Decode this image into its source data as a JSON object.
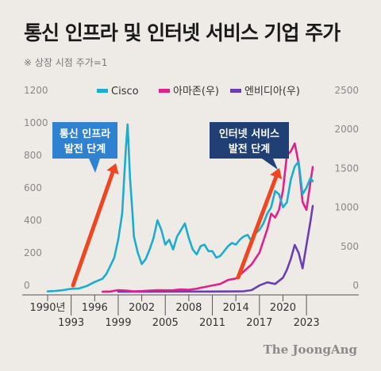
{
  "title": "통신 인프라 및 인터넷 서비스 기업 주가",
  "subtitle": "※ 상장 시점 주가=1",
  "credit": "The JoongAng",
  "chart_data": {
    "type": "line",
    "x_ticks_upper": [
      "1990년",
      "1996",
      "2002",
      "2008",
      "2014",
      "2020"
    ],
    "x_ticks_lower": [
      "1993",
      "1999",
      "2005",
      "2011",
      "2017",
      "2023"
    ],
    "xlim": [
      1990,
      2024
    ],
    "left_axis": {
      "ticks": [
        0,
        200,
        400,
        600,
        800,
        1000,
        1200
      ],
      "ylim": [
        0,
        1200
      ]
    },
    "right_axis": {
      "ticks": [
        0,
        500,
        1000,
        1500,
        2000,
        2500
      ],
      "ylim": [
        0,
        2500
      ]
    },
    "series": [
      {
        "name": "Cisco",
        "color": "#1aadd0",
        "axis": "left",
        "x": [
          1990,
          1991,
          1992,
          1993,
          1994,
          1995,
          1996,
          1997,
          1997.5,
          1998,
          1998.5,
          1999,
          1999.5,
          2000,
          2000.2,
          2000.5,
          2000.8,
          2001,
          2001.5,
          2002,
          2002.5,
          2003,
          2003.5,
          2004,
          2004.5,
          2005,
          2005.5,
          2006,
          2006.5,
          2007,
          2007.5,
          2008,
          2008.5,
          2009,
          2009.5,
          2010,
          2010.5,
          2011,
          2011.5,
          2012,
          2012.5,
          2013,
          2013.5,
          2014,
          2014.5,
          2015,
          2015.5,
          2016,
          2016.5,
          2017,
          2017.5,
          2018,
          2018.5,
          2019,
          2019.5,
          2020,
          2020.5,
          2021,
          2021.5,
          2022,
          2022.5,
          2023,
          2023.5,
          2023.8
        ],
        "values": [
          2,
          5,
          10,
          18,
          20,
          35,
          60,
          80,
          110,
          160,
          210,
          320,
          480,
          900,
          1030,
          700,
          500,
          340,
          240,
          170,
          200,
          260,
          330,
          440,
          380,
          290,
          320,
          260,
          340,
          380,
          420,
          330,
          260,
          230,
          280,
          290,
          250,
          250,
          210,
          220,
          250,
          280,
          300,
          290,
          320,
          340,
          350,
          310,
          360,
          380,
          420,
          480,
          520,
          620,
          600,
          520,
          550,
          690,
          770,
          800,
          600,
          640,
          700,
          680
        ]
      },
      {
        "name": "아마존(우)",
        "color": "#e0218a",
        "axis": "right",
        "x": [
          1997,
          1998,
          1999,
          2000,
          2001,
          2002,
          2003,
          2004,
          2005,
          2006,
          2007,
          2008,
          2009,
          2010,
          2011,
          2012,
          2013,
          2014,
          2015,
          2016,
          2017,
          2018,
          2018.5,
          2019,
          2019.5,
          2020,
          2020.5,
          2021,
          2021.5,
          2022,
          2022.5,
          2023,
          2023.5,
          2023.8
        ],
        "values": [
          1,
          3,
          20,
          15,
          5,
          8,
          15,
          20,
          18,
          20,
          30,
          25,
          40,
          60,
          80,
          100,
          150,
          170,
          260,
          350,
          500,
          800,
          1000,
          950,
          1050,
          1300,
          1750,
          1800,
          1900,
          1650,
          1150,
          1050,
          1400,
          1600
        ]
      },
      {
        "name": "엔비디아(우)",
        "color": "#6a3fb5",
        "axis": "right",
        "x": [
          1999,
          2002,
          2005,
          2008,
          2010,
          2012,
          2014,
          2015,
          2016,
          2017,
          2018,
          2019,
          2020,
          2020.5,
          2021,
          2021.5,
          2022,
          2022.5,
          2023,
          2023.5,
          2023.8
        ],
        "values": [
          1,
          1,
          2,
          3,
          2,
          3,
          4,
          6,
          20,
          80,
          120,
          100,
          180,
          280,
          420,
          600,
          500,
          300,
          600,
          900,
          1100
        ]
      }
    ],
    "annotations": [
      {
        "lines": [
          "통신 인프라",
          "발전 단계"
        ],
        "bg": "#2f82cf",
        "text_color": "#ffffff"
      },
      {
        "lines": [
          "인터넷 서비스",
          "발전 단계"
        ],
        "bg": "#1f3f75",
        "text_color": "#ffffff"
      }
    ],
    "arrow_color": "#ef4520",
    "grid": false,
    "legend_position": "top"
  }
}
